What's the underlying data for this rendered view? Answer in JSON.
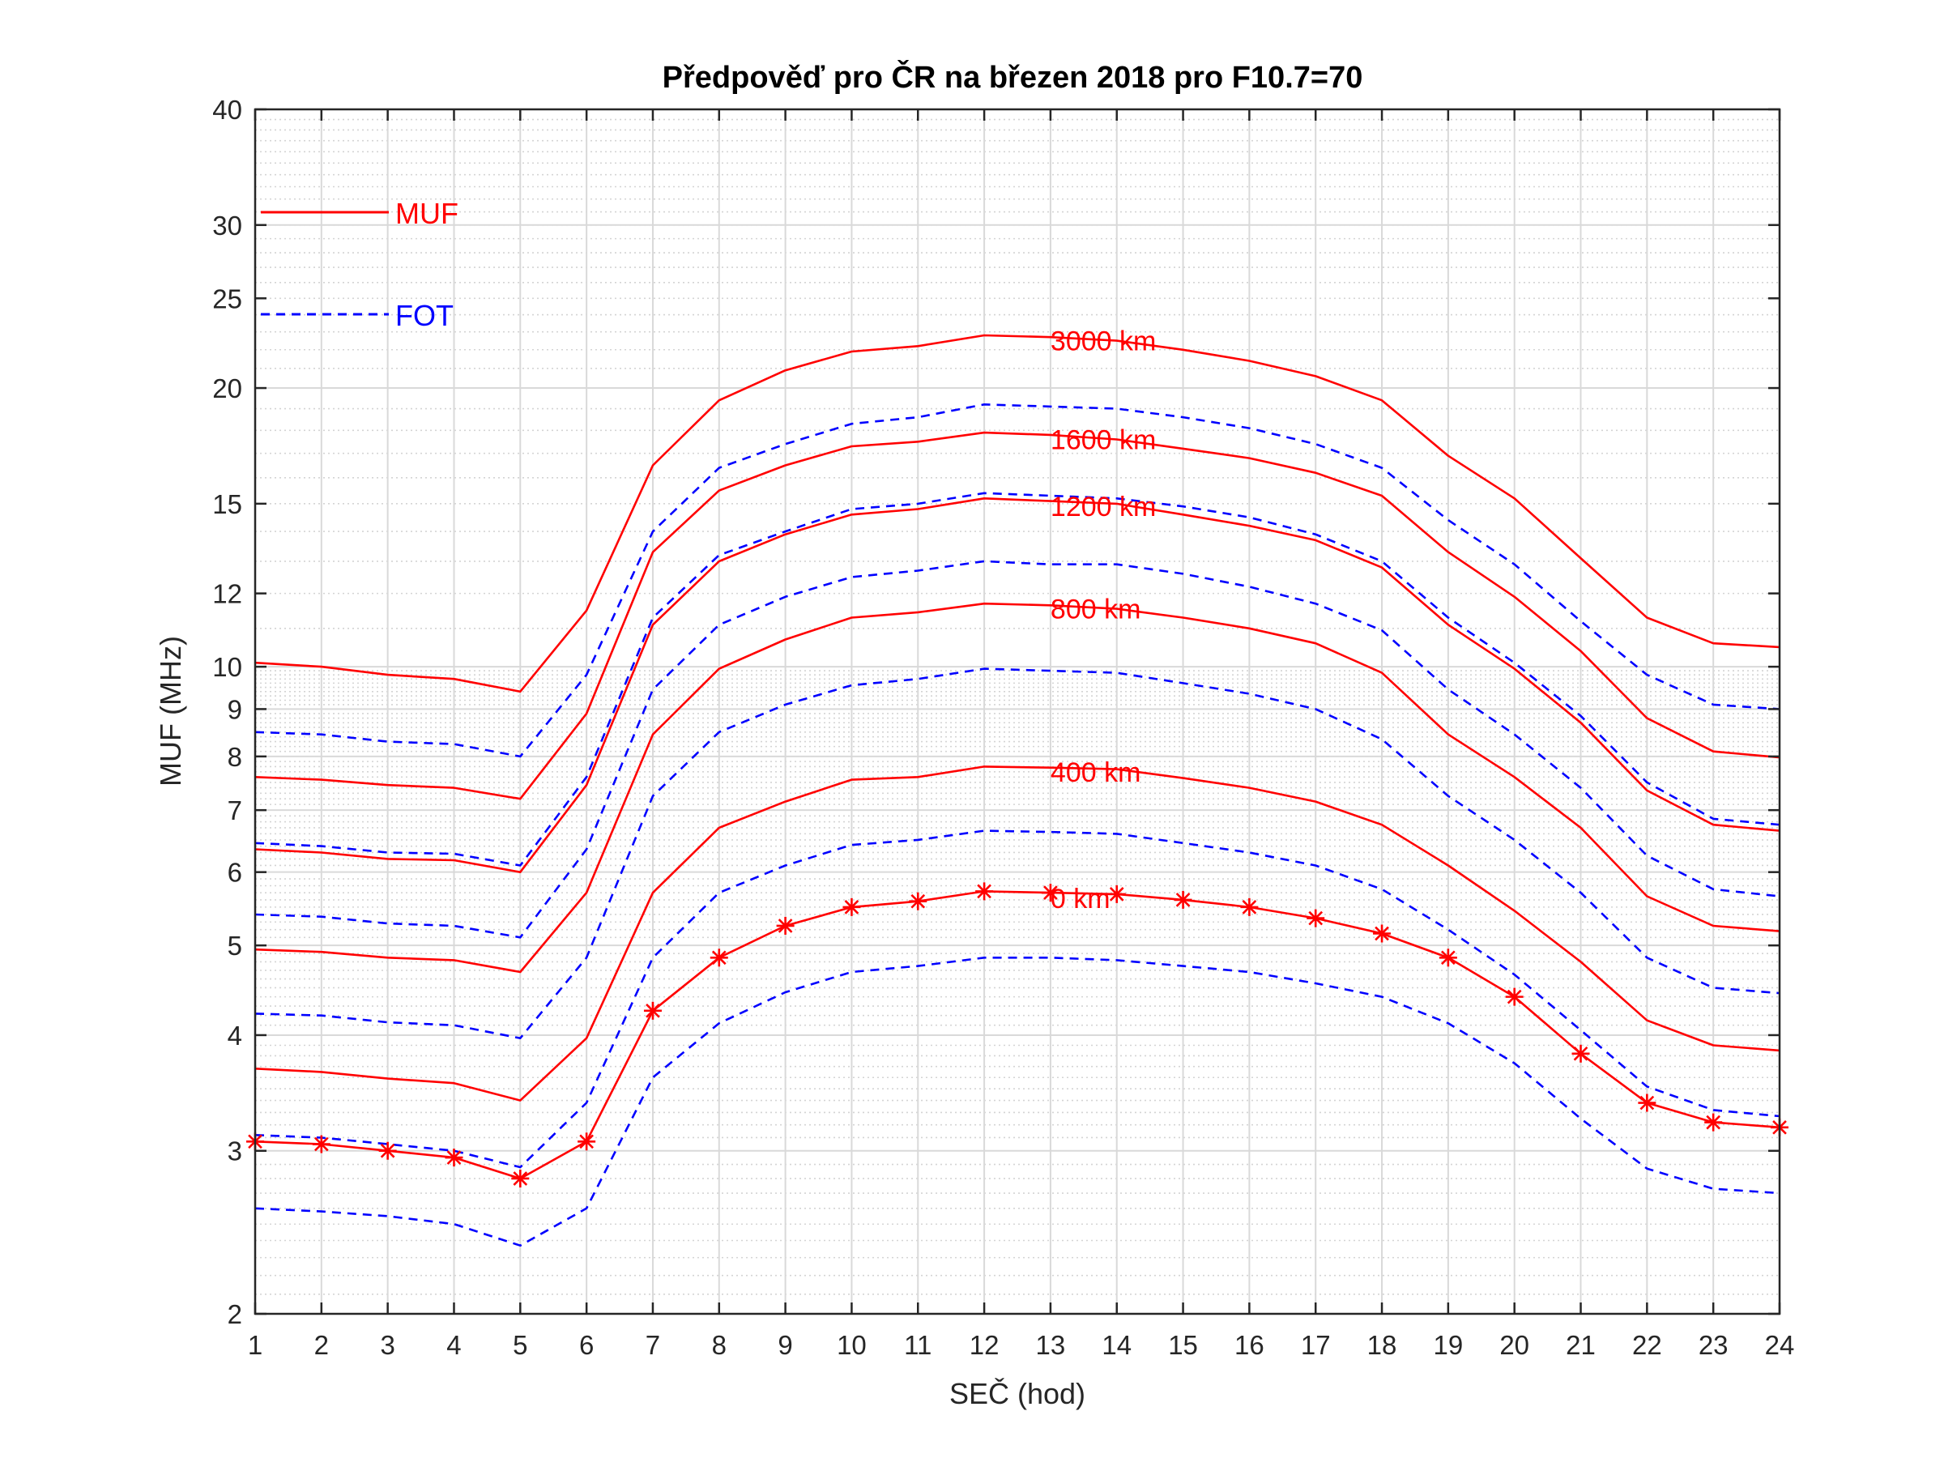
{
  "chart_data": {
    "type": "line",
    "title": "Předpověď pro ČR na březen 2018 pro F10.7=70",
    "xlabel": "SEČ (hod)",
    "ylabel": "MUF (MHz)",
    "xlim": [
      1,
      24
    ],
    "ylim": [
      2,
      40
    ],
    "yscale": "log",
    "grid": true,
    "x": [
      1,
      2,
      3,
      4,
      5,
      6,
      7,
      8,
      9,
      10,
      11,
      12,
      13,
      14,
      15,
      16,
      17,
      18,
      19,
      20,
      21,
      22,
      23,
      24
    ],
    "yticks": [
      2,
      3,
      4,
      5,
      6,
      7,
      8,
      9,
      10,
      12,
      15,
      20,
      25,
      30,
      40
    ],
    "legend": [
      {
        "label": "MUF",
        "color": "#ff0000",
        "style": "solid"
      },
      {
        "label": "FOT",
        "color": "#0000ff",
        "style": "dashed"
      }
    ],
    "series": [
      {
        "name": "MUF 3000 km",
        "kind": "MUF",
        "values": [
          10.1,
          10.0,
          9.8,
          9.7,
          9.4,
          11.5,
          16.5,
          19.4,
          20.9,
          21.9,
          22.2,
          22.8,
          22.7,
          22.5,
          22.0,
          21.4,
          20.6,
          19.4,
          16.9,
          15.2,
          13.1,
          11.3,
          10.6,
          10.5
        ]
      },
      {
        "name": "FOT 3000 km",
        "kind": "FOT",
        "values": [
          8.5,
          8.45,
          8.3,
          8.25,
          8.0,
          9.8,
          14.0,
          16.4,
          17.4,
          18.3,
          18.6,
          19.2,
          19.1,
          19.0,
          18.6,
          18.1,
          17.4,
          16.4,
          14.4,
          12.9,
          11.2,
          9.8,
          9.1,
          9.0
        ]
      },
      {
        "name": "MUF 1600 km",
        "kind": "MUF",
        "values": [
          7.6,
          7.55,
          7.45,
          7.4,
          7.2,
          8.9,
          13.3,
          15.5,
          16.5,
          17.3,
          17.5,
          17.9,
          17.8,
          17.6,
          17.2,
          16.8,
          16.2,
          15.3,
          13.3,
          11.9,
          10.4,
          8.8,
          8.1,
          7.98
        ]
      },
      {
        "name": "FOT 1600 km",
        "kind": "FOT",
        "values": [
          6.45,
          6.4,
          6.3,
          6.28,
          6.1,
          7.6,
          11.3,
          13.2,
          14.0,
          14.8,
          15.0,
          15.4,
          15.3,
          15.2,
          14.9,
          14.5,
          13.9,
          13.0,
          11.3,
          10.1,
          8.85,
          7.5,
          6.85,
          6.75
        ]
      },
      {
        "name": "MUF 1200 km",
        "kind": "MUF",
        "values": [
          6.35,
          6.3,
          6.2,
          6.18,
          6.0,
          7.45,
          11.1,
          13.0,
          13.9,
          14.6,
          14.8,
          15.2,
          15.1,
          15.0,
          14.6,
          14.2,
          13.7,
          12.8,
          11.1,
          9.95,
          8.7,
          7.35,
          6.75,
          6.65
        ]
      },
      {
        "name": "FOT 1200 km",
        "kind": "FOT",
        "values": [
          5.4,
          5.37,
          5.28,
          5.25,
          5.1,
          6.35,
          9.45,
          11.1,
          11.9,
          12.5,
          12.7,
          13.0,
          12.9,
          12.9,
          12.6,
          12.2,
          11.7,
          10.95,
          9.45,
          8.45,
          7.4,
          6.25,
          5.75,
          5.65
        ]
      },
      {
        "name": "MUF 800 km",
        "kind": "MUF",
        "values": [
          4.95,
          4.92,
          4.85,
          4.82,
          4.68,
          5.7,
          8.45,
          9.95,
          10.7,
          11.3,
          11.45,
          11.7,
          11.65,
          11.55,
          11.3,
          11.0,
          10.6,
          9.85,
          8.45,
          7.6,
          6.7,
          5.65,
          5.25,
          5.18
        ]
      },
      {
        "name": "FOT 800 km",
        "kind": "FOT",
        "values": [
          4.22,
          4.2,
          4.13,
          4.1,
          3.97,
          4.85,
          7.25,
          8.5,
          9.1,
          9.55,
          9.7,
          9.95,
          9.9,
          9.85,
          9.6,
          9.35,
          9.0,
          8.35,
          7.25,
          6.5,
          5.7,
          4.85,
          4.5,
          4.44
        ]
      },
      {
        "name": "MUF 400 km",
        "kind": "MUF",
        "values": [
          3.68,
          3.65,
          3.59,
          3.55,
          3.4,
          3.97,
          5.7,
          6.7,
          7.15,
          7.55,
          7.6,
          7.8,
          7.78,
          7.75,
          7.58,
          7.4,
          7.15,
          6.75,
          6.1,
          5.45,
          4.8,
          4.15,
          3.9,
          3.85
        ]
      },
      {
        "name": "FOT 400 km",
        "kind": "FOT",
        "values": [
          3.12,
          3.1,
          3.05,
          3.0,
          2.88,
          3.38,
          4.85,
          5.7,
          6.1,
          6.42,
          6.5,
          6.65,
          6.63,
          6.6,
          6.45,
          6.3,
          6.1,
          5.75,
          5.2,
          4.65,
          4.05,
          3.52,
          3.32,
          3.27
        ]
      },
      {
        "name": "MUF 0 km",
        "kind": "MUF0",
        "values": [
          3.07,
          3.05,
          3.0,
          2.95,
          2.8,
          3.07,
          4.25,
          4.85,
          5.25,
          5.5,
          5.58,
          5.72,
          5.7,
          5.68,
          5.6,
          5.5,
          5.35,
          5.15,
          4.85,
          4.4,
          3.82,
          3.38,
          3.22,
          3.18
        ]
      },
      {
        "name": "FOT 0 km",
        "kind": "FOT",
        "values": [
          2.6,
          2.58,
          2.55,
          2.5,
          2.37,
          2.6,
          3.6,
          4.12,
          4.45,
          4.68,
          4.75,
          4.85,
          4.85,
          4.82,
          4.75,
          4.68,
          4.55,
          4.4,
          4.12,
          3.73,
          3.25,
          2.87,
          2.73,
          2.7
        ]
      }
    ],
    "distance_labels": [
      {
        "text": "3000 km",
        "x": 13,
        "y": 22.5
      },
      {
        "text": "1600 km",
        "x": 13,
        "y": 17.6
      },
      {
        "text": "1200 km",
        "x": 13,
        "y": 14.9
      },
      {
        "text": "800 km",
        "x": 13,
        "y": 11.55
      },
      {
        "text": "400 km",
        "x": 13,
        "y": 7.7
      },
      {
        "text": "0 km",
        "x": 13,
        "y": 5.62
      }
    ]
  }
}
